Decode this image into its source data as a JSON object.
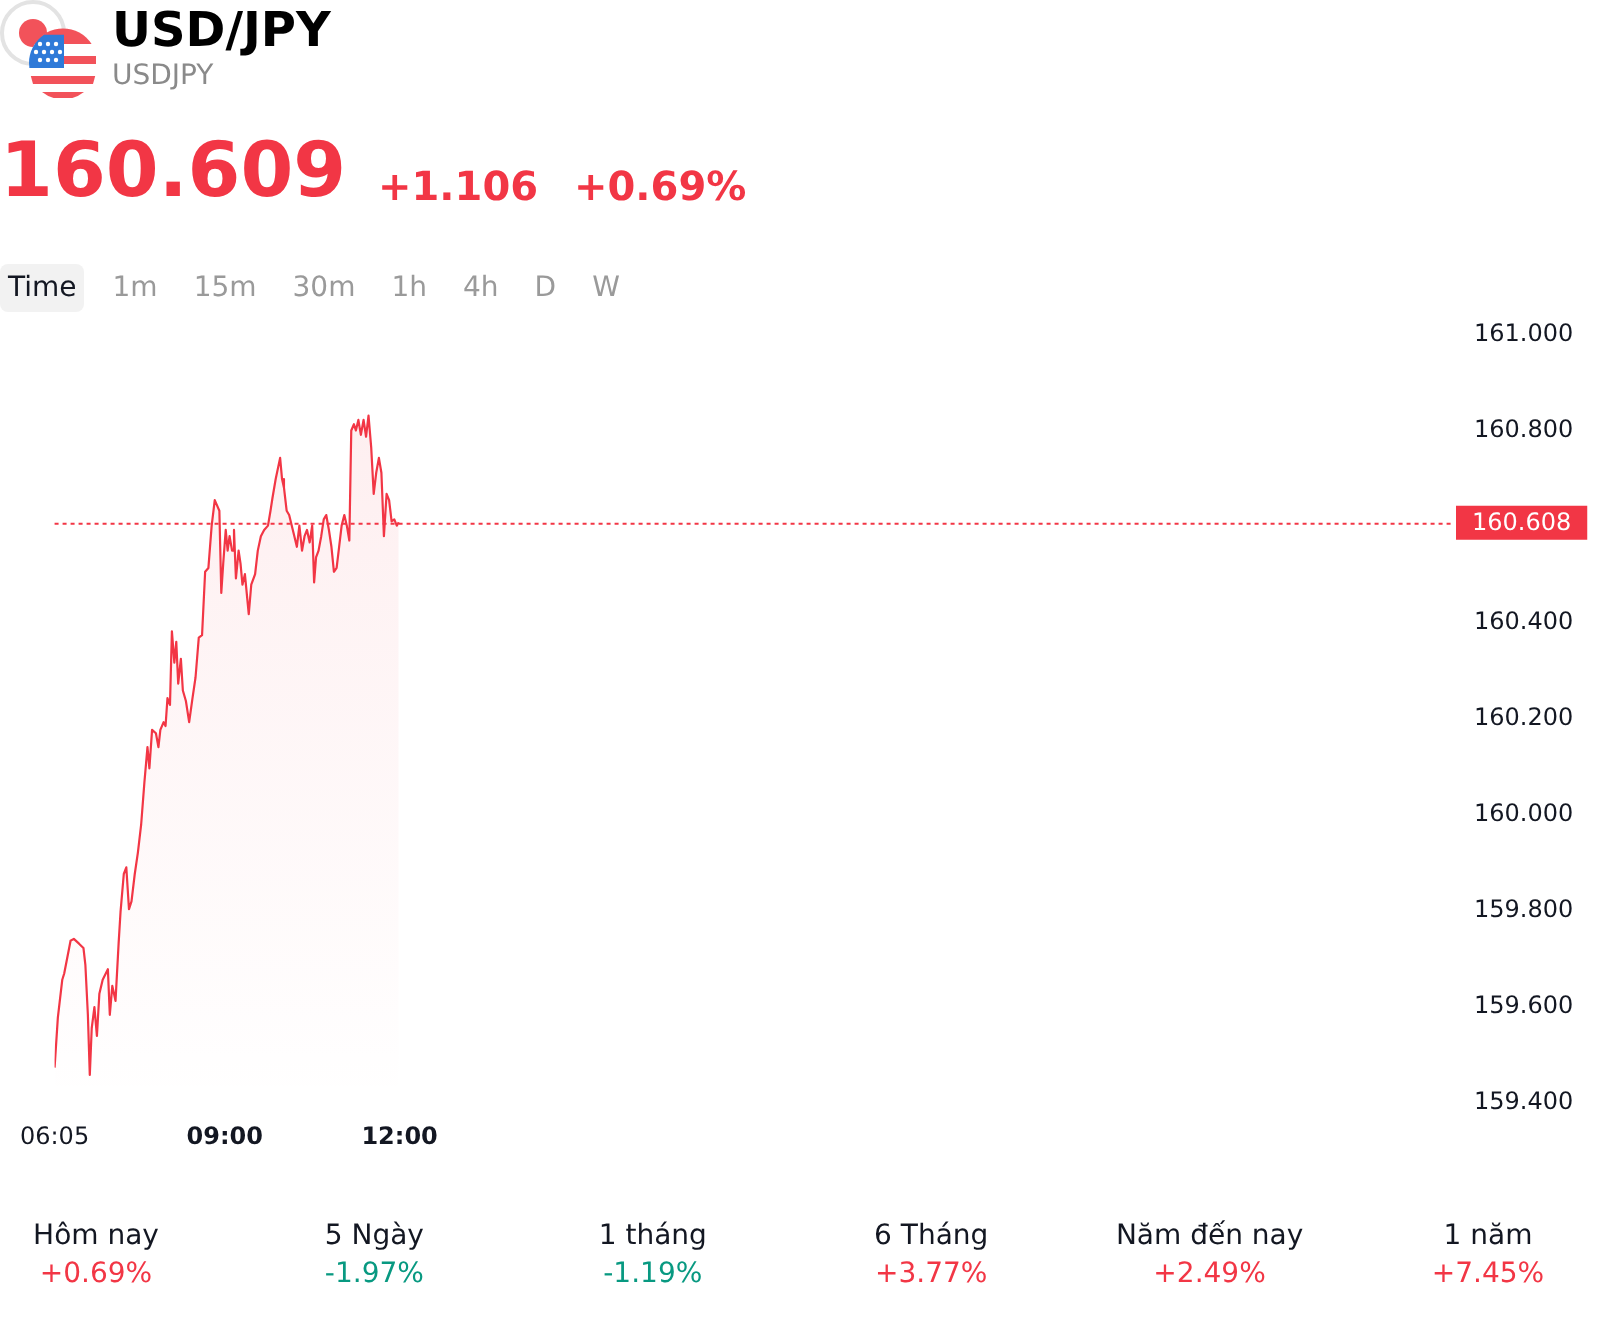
{
  "chart_data": [
    {
      "type": "area",
      "title": "USD/JPY",
      "subtitle": "USDJPY",
      "annotations": [
        "160.609",
        "+1.106",
        "+0.69%",
        "Time",
        "1m",
        "15m",
        "30m",
        "1h",
        "4h",
        "D",
        "W"
      ],
      "color": "#f23645",
      "x": [
        6.083,
        6.139,
        6.215,
        6.248,
        6.357,
        6.413,
        6.502,
        6.578,
        6.611,
        6.654,
        6.687,
        6.72,
        6.766,
        6.809,
        6.851,
        6.908,
        6.997,
        7.03,
        7.073,
        7.128,
        7.181,
        7.214,
        7.27,
        7.313,
        7.359,
        7.402,
        7.458,
        7.511,
        7.567,
        7.623,
        7.676,
        7.709,
        7.755,
        7.821,
        7.864,
        7.897,
        7.953,
        7.986,
        8.019,
        8.062,
        8.095,
        8.137,
        8.17,
        8.203,
        8.249,
        8.283,
        8.335,
        8.391,
        8.447,
        8.5,
        8.556,
        8.612,
        8.665,
        8.721,
        8.777,
        8.83,
        8.909,
        8.942,
        8.975,
        9.018,
        9.051,
        9.084,
        9.127,
        9.16,
        9.193,
        9.239,
        9.272,
        9.305,
        9.347,
        9.413,
        9.456,
        9.522,
        9.568,
        9.621,
        9.677,
        9.743,
        9.786,
        9.819,
        9.875,
        9.951,
        9.984,
        10.017,
        10.063,
        10.106,
        10.195,
        10.238,
        10.281,
        10.327,
        10.37,
        10.412,
        10.458,
        10.501,
        10.534,
        10.567,
        10.61,
        10.656,
        10.699,
        10.742,
        10.788,
        10.831,
        10.874,
        10.92,
        10.963,
        11.006,
        11.052,
        11.095,
        11.138,
        11.171,
        11.217,
        11.25,
        11.293,
        11.336,
        11.382,
        11.425,
        11.467,
        11.513,
        11.556,
        11.599,
        11.645,
        11.688,
        11.731,
        11.777,
        11.82,
        11.863,
        11.909,
        11.952,
        11.985
      ],
      "values": [
        159.474,
        159.578,
        159.657,
        159.67,
        159.738,
        159.742,
        159.732,
        159.723,
        159.688,
        159.584,
        159.459,
        159.556,
        159.6,
        159.54,
        159.628,
        159.657,
        159.679,
        159.584,
        159.644,
        159.613,
        159.732,
        159.798,
        159.877,
        159.891,
        159.804,
        159.82,
        159.877,
        159.921,
        159.979,
        160.067,
        160.141,
        160.097,
        160.177,
        160.17,
        160.141,
        160.177,
        160.193,
        160.185,
        160.243,
        160.229,
        160.382,
        160.317,
        160.36,
        160.273,
        160.325,
        160.259,
        160.237,
        160.193,
        160.242,
        160.286,
        160.369,
        160.374,
        160.506,
        160.514,
        160.602,
        160.655,
        160.633,
        160.462,
        160.523,
        160.593,
        160.55,
        160.58,
        160.55,
        160.593,
        160.492,
        160.55,
        160.523,
        160.479,
        160.501,
        160.418,
        160.479,
        160.501,
        160.55,
        160.58,
        160.593,
        160.602,
        160.633,
        160.659,
        160.699,
        160.743,
        160.699,
        160.681,
        160.633,
        160.624,
        160.58,
        160.558,
        160.602,
        160.55,
        160.58,
        160.593,
        160.567,
        160.602,
        160.484,
        160.536,
        160.55,
        160.58,
        160.615,
        160.624,
        160.593,
        160.558,
        160.506,
        160.514,
        160.558,
        160.602,
        160.624,
        160.602,
        160.571,
        160.8,
        160.813,
        160.8,
        160.822,
        160.791,
        160.822,
        160.787,
        160.831,
        160.765,
        160.668,
        160.712,
        160.743,
        160.712,
        160.58,
        160.668,
        160.655,
        160.611,
        160.615,
        160.602,
        160.609
      ],
      "xlim": [
        6.083,
        30.083
      ],
      "xticks": [
        {
          "value": 6.083,
          "label": "06:05"
        },
        {
          "value": 9,
          "label": "09:00"
        },
        {
          "value": 12,
          "label": "12:00"
        }
      ],
      "ylim": [
        159.4,
        161.0
      ],
      "yticks": [
        {
          "value": 159.4,
          "label": "159.400"
        },
        {
          "value": 159.6,
          "label": "159.600"
        },
        {
          "value": 159.8,
          "label": "159.800"
        },
        {
          "value": 160.0,
          "label": "160.000"
        },
        {
          "value": 160.2,
          "label": "160.200"
        },
        {
          "value": 160.4,
          "label": "160.400"
        },
        {
          "value": 160.8,
          "label": "160.800"
        },
        {
          "value": 161.0,
          "label": "161.000"
        }
      ],
      "ref_lines": [
        {
          "axis": "y",
          "value": 160.608,
          "label": "160.608",
          "color": "#f23645",
          "line_style": "dotted"
        }
      ]
    },
    {
      "type": "other",
      "categories": [
        "Hôm nay",
        "5 Ngày",
        "1 tháng",
        "6 Tháng",
        "Năm đến nay",
        "1 năm"
      ],
      "values": [
        0.69,
        -1.97,
        -1.19,
        3.77,
        2.49,
        7.45
      ],
      "value_labels": [
        "+0.69%",
        "-1.97%",
        "-1.19%",
        "+3.77%",
        "+2.49%",
        "+7.45%"
      ],
      "colors": [
        "#f23645",
        "#089981",
        "#089981",
        "#f23645",
        "#f23645",
        "#f23645"
      ]
    }
  ]
}
